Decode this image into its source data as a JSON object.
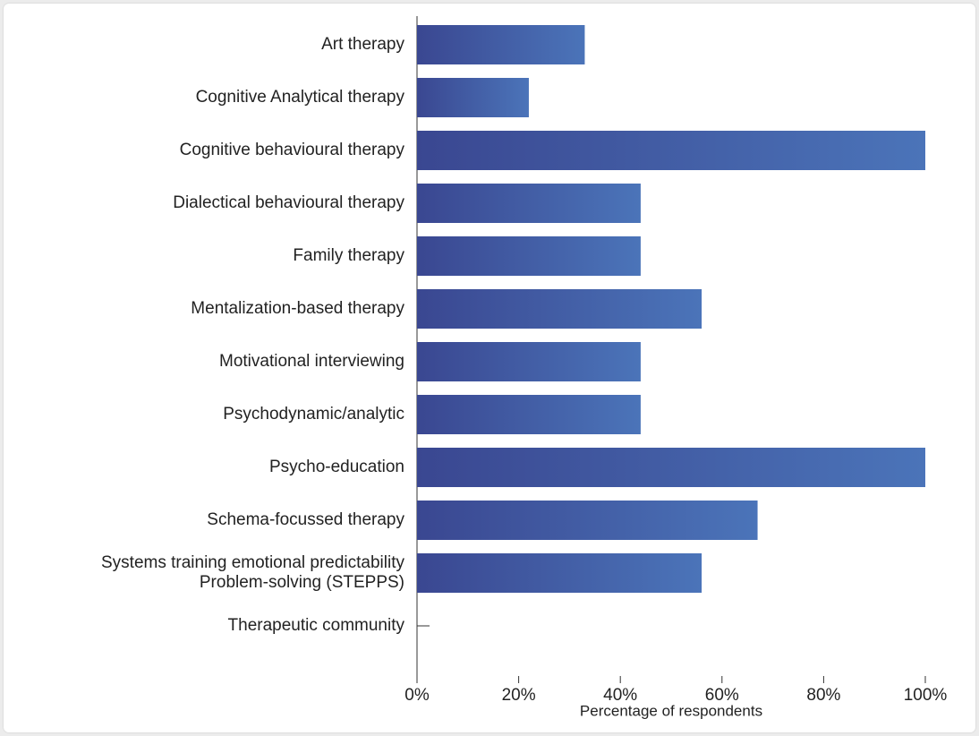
{
  "chart_data": {
    "type": "hbar",
    "categories": [
      "Art therapy",
      "Cognitive Analytical therapy",
      "Cognitive behavioural therapy",
      "Dialectical behavioural therapy",
      "Family therapy",
      "Mentalization-based therapy",
      "Motivational interviewing",
      "Psychodynamic/analytic",
      "Psycho-education",
      "Schema-focussed therapy",
      "Systems training emotional predictability\nProblem-solving (STEPPS)",
      "Therapeutic community"
    ],
    "values": [
      33,
      22,
      100,
      44,
      44,
      56,
      44,
      44,
      100,
      67,
      56,
      0
    ],
    "color": [
      "#3a4791",
      "#4b74b9"
    ],
    "xlim": [
      0,
      100
    ],
    "xticks": [
      {
        "value": 0,
        "label": "0%"
      },
      {
        "value": 20,
        "label": "20%"
      },
      {
        "value": 40,
        "label": "40%"
      },
      {
        "value": 60,
        "label": "60%"
      },
      {
        "value": 80,
        "label": "80%"
      },
      {
        "value": 100,
        "label": "100%"
      }
    ],
    "xlabel": "Percentage of respondents"
  }
}
